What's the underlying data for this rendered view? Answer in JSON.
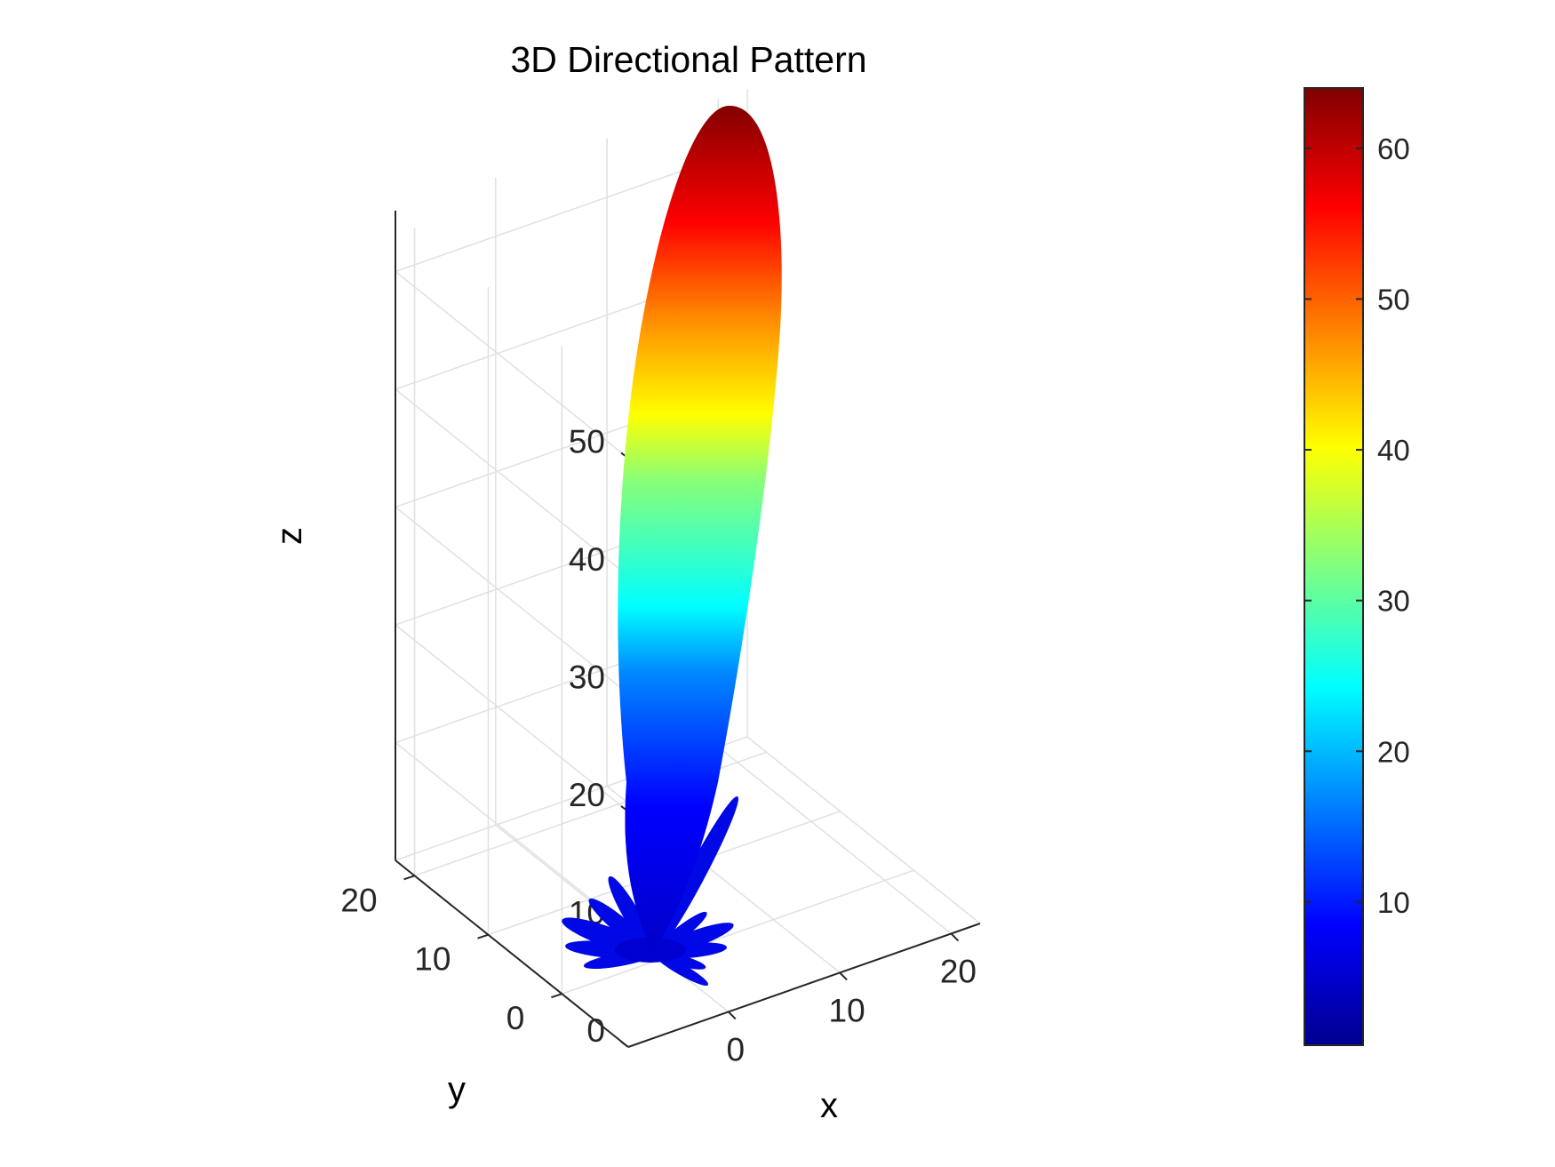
{
  "chart_data": {
    "type": "surface3d",
    "title": "3D Directional Pattern",
    "xlabel": "x",
    "ylabel": "y",
    "zlabel": "z",
    "x_ticks": [
      0,
      10,
      20
    ],
    "y_ticks": [
      0,
      10,
      20
    ],
    "z_ticks": [
      0,
      10,
      20,
      30,
      40,
      50
    ],
    "colormap": "jet",
    "colorbar": {
      "ticks": [
        10,
        20,
        30,
        40,
        50,
        60
      ],
      "range": [
        0.5,
        64
      ],
      "placement": "right"
    },
    "main_lobe": {
      "peak_height": 64,
      "axis_direction": "along +z, tilted slightly toward the upper-right of the view"
    },
    "side_lobes": "many small lobes (up to ~10) fanned around the base",
    "grid": true,
    "colors": {
      "jet": [
        "#00008f",
        "#0000ff",
        "#00ffff",
        "#ffff00",
        "#ff0000",
        "#800000"
      ],
      "grid": "#e0e0e0",
      "axes": "#262626"
    }
  }
}
